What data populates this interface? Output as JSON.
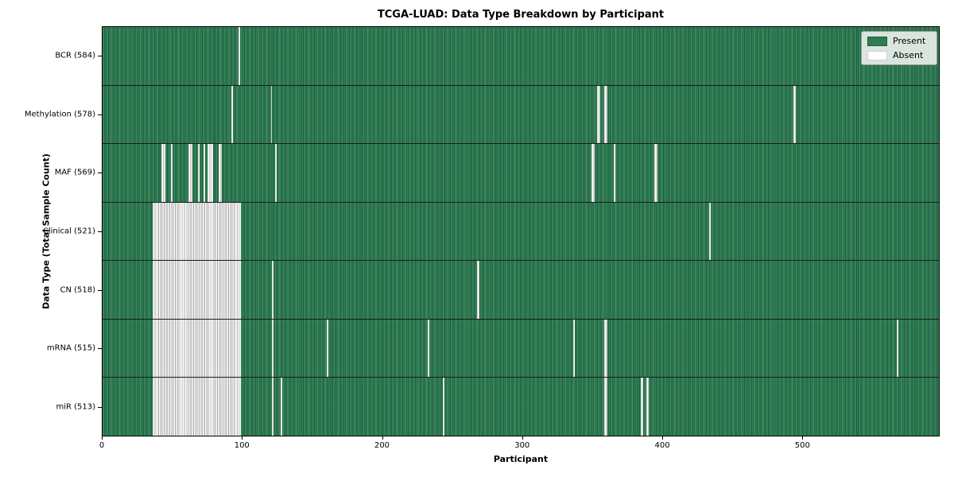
{
  "chart_data": {
    "type": "heatmap",
    "title": "TCGA-LUAD: Data Type Breakdown by Participant",
    "xlabel": "Participant",
    "ylabel": "Data Type (Total Sample Count)",
    "x_ticks": [
      0,
      100,
      200,
      300,
      400,
      500
    ],
    "x_range": [
      0,
      598
    ],
    "n_participants": 598,
    "grid": false,
    "legend_position": "upper right",
    "legend": [
      {
        "label": "Present",
        "color": "#2e7d52"
      },
      {
        "label": "Absent",
        "color": "#ffffff"
      }
    ],
    "colors": {
      "present_fill": "#2f8155",
      "present_cell_edge": "#1f5f3e",
      "absent_fill": "#ffffff",
      "absent_cell_edge": "#a3a3a3",
      "row_separator": "#1c1c1c",
      "plot_border": "#000000"
    },
    "rows": [
      {
        "label": "BCR (584)",
        "data_type": "BCR",
        "total_samples": 584,
        "absent_ranges": [
          [
            97,
            97
          ]
        ]
      },
      {
        "label": "Methylation (578)",
        "data_type": "Methylation",
        "total_samples": 578,
        "absent_ranges": [
          [
            92,
            92
          ],
          [
            120,
            120
          ],
          [
            353,
            354
          ],
          [
            358,
            359
          ],
          [
            493,
            494
          ]
        ]
      },
      {
        "label": "MAF (569)",
        "data_type": "MAF",
        "total_samples": 569,
        "absent_ranges": [
          [
            42,
            44
          ],
          [
            49,
            49
          ],
          [
            61,
            63
          ],
          [
            68,
            68
          ],
          [
            72,
            72
          ],
          [
            75,
            78
          ],
          [
            83,
            84
          ],
          [
            123,
            123
          ],
          [
            349,
            350
          ],
          [
            365,
            365
          ],
          [
            394,
            395
          ]
        ]
      },
      {
        "label": "Clinical (521)",
        "data_type": "Clinical",
        "total_samples": 521,
        "absent_ranges": [
          [
            36,
            98
          ],
          [
            433,
            433
          ]
        ]
      },
      {
        "label": "CN (518)",
        "data_type": "CN",
        "total_samples": 518,
        "absent_ranges": [
          [
            36,
            98
          ],
          [
            121,
            121
          ],
          [
            267,
            268
          ]
        ]
      },
      {
        "label": "mRNA (515)",
        "data_type": "mRNA",
        "total_samples": 515,
        "absent_ranges": [
          [
            36,
            98
          ],
          [
            121,
            121
          ],
          [
            160,
            160
          ],
          [
            232,
            232
          ],
          [
            336,
            336
          ],
          [
            358,
            359
          ],
          [
            567,
            567
          ]
        ]
      },
      {
        "label": "miR (513)",
        "data_type": "miR",
        "total_samples": 513,
        "absent_ranges": [
          [
            36,
            98
          ],
          [
            121,
            121
          ],
          [
            127,
            127
          ],
          [
            243,
            243
          ],
          [
            358,
            359
          ],
          [
            384,
            385
          ],
          [
            388,
            389
          ]
        ]
      }
    ]
  },
  "layout_note": "presence-absence matrix; green = sample present for participant, white = absent"
}
